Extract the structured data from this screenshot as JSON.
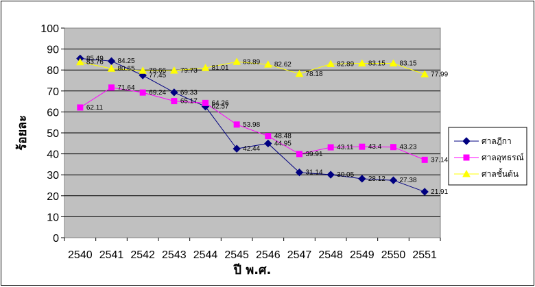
{
  "chart_data": {
    "type": "line",
    "title": "",
    "xlabel": "ปี พ.ศ.",
    "ylabel": "ร้อยละ",
    "categories": [
      "2540",
      "2541",
      "2542",
      "2543",
      "2544",
      "2545",
      "2546",
      "2547",
      "2548",
      "2549",
      "2550",
      "2551"
    ],
    "ylim": [
      0,
      100
    ],
    "yticks": [
      0,
      10,
      20,
      30,
      40,
      50,
      60,
      70,
      80,
      90,
      100
    ],
    "grid": true,
    "legend_position": "right",
    "plot_background": "#c0c0c0",
    "series": [
      {
        "name": "ศาลฎีกา",
        "color": "#000080",
        "marker": "diamond",
        "values": [
          85.49,
          84.25,
          77.45,
          69.33,
          62.57,
          42.44,
          44.95,
          31.14,
          30.05,
          28.12,
          27.38,
          21.91
        ],
        "labels": [
          "85.49",
          "84.25",
          "77.45",
          "69.33",
          "62.57",
          "42.44",
          "44.95",
          "31.14",
          "30.05",
          "28.12",
          "27.38",
          "21.91"
        ]
      },
      {
        "name": "ศาลอุทธรณ์",
        "color": "#ff00ff",
        "marker": "square",
        "values": [
          62.11,
          71.64,
          69.24,
          65.17,
          64.26,
          53.98,
          48.48,
          39.91,
          43.11,
          43.4,
          43.23,
          37.14
        ],
        "labels": [
          "62.11",
          "71.64",
          "69.24",
          "65.17",
          "64.26",
          "53.98",
          "48.48",
          "39.91",
          "43.11",
          "43.4",
          "43.23",
          "37.14"
        ]
      },
      {
        "name": "ศาลชั้นต้น",
        "color": "#ffff00",
        "marker": "triangle",
        "values": [
          83.76,
          80.65,
          79.66,
          79.73,
          81.01,
          83.89,
          82.62,
          78.18,
          82.89,
          83.15,
          83.15,
          77.99
        ],
        "labels": [
          "83.76",
          "80.65",
          "79.66",
          "79.73",
          "81.01",
          "83.89",
          "82.62",
          "78.18",
          "82.89",
          "83.15",
          "83.15",
          "77.99"
        ]
      }
    ]
  }
}
